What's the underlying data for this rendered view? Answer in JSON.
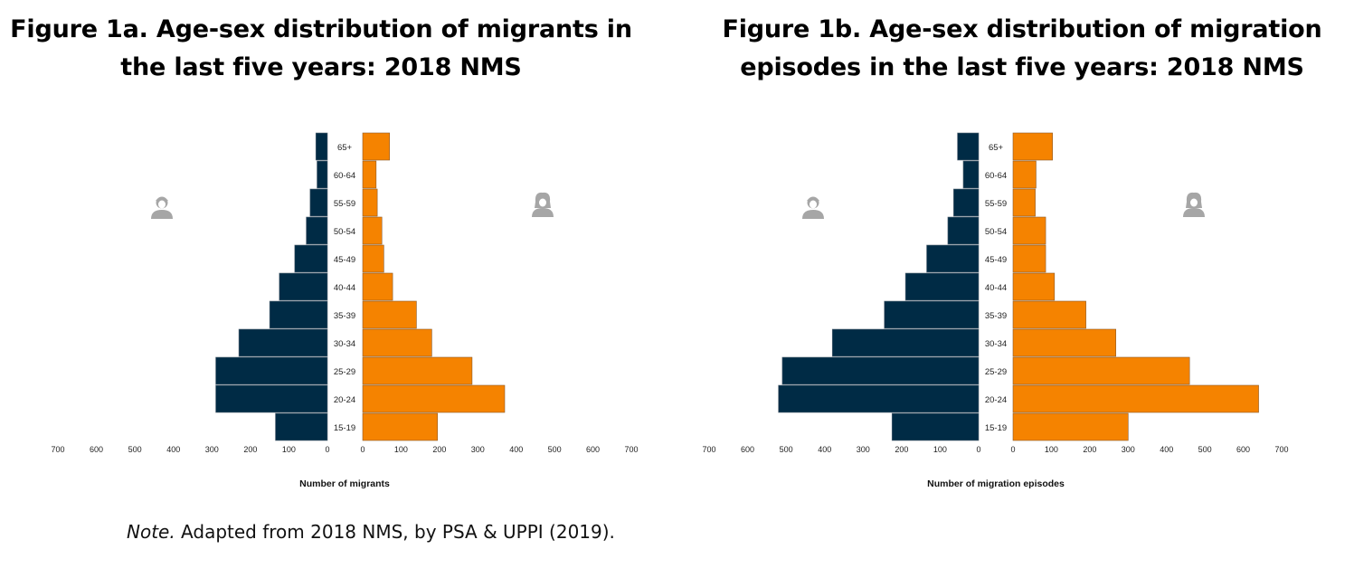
{
  "titles": {
    "left_line1": "Figure 1a. Age-sex distribution of migrants in",
    "left_line2": "the last five years: 2018 NMS",
    "right_line1": "Figure 1b. Age-sex distribution of migration",
    "right_line2": "episodes in the last five years: 2018 NMS"
  },
  "note": {
    "label": "Note.",
    "text": " Adapted from 2018 NMS, by PSA & UPPI (2019)."
  },
  "colors": {
    "male": "#002b45",
    "female": "#f58300",
    "icon": "#a6a6a6"
  },
  "icons": {
    "left": "male-person-icon",
    "right": "female-person-icon"
  },
  "chart_data": [
    {
      "type": "bar",
      "title": "Figure 1a. Age-sex distribution of migrants in the last five years: 2018 NMS",
      "xlabel": "Number of migrants",
      "categories": [
        "15-19",
        "20-24",
        "25-29",
        "30-34",
        "35-39",
        "40-44",
        "45-49",
        "50-54",
        "55-59",
        "60-64",
        "65+"
      ],
      "series": [
        {
          "values": [
            135,
            290,
            290,
            230,
            150,
            125,
            85,
            55,
            45,
            27,
            30
          ]
        },
        {
          "values": [
            195,
            370,
            285,
            180,
            140,
            78,
            55,
            50,
            38,
            35,
            70
          ]
        }
      ],
      "left_ticks": [
        "700",
        "600",
        "500",
        "400",
        "300",
        "200",
        "100",
        "0"
      ],
      "right_ticks": [
        "0",
        "100",
        "200",
        "300",
        "400",
        "500",
        "600",
        "700"
      ],
      "xlim": [
        0,
        700
      ]
    },
    {
      "type": "bar",
      "title": "Figure 1b. Age-sex distribution of migration episodes in the last five years: 2018 NMS",
      "xlabel": "Number of migration episodes",
      "categories": [
        "15-19",
        "20-24",
        "25-29",
        "30-34",
        "35-39",
        "40-44",
        "45-49",
        "50-54",
        "55-59",
        "60-64",
        "65+"
      ],
      "series": [
        {
          "values": [
            225,
            520,
            510,
            380,
            245,
            190,
            135,
            80,
            65,
            40,
            55
          ]
        },
        {
          "values": [
            300,
            640,
            460,
            268,
            190,
            108,
            85,
            85,
            58,
            60,
            103
          ]
        }
      ],
      "left_ticks": [
        "700",
        "600",
        "500",
        "400",
        "300",
        "200",
        "100",
        "0"
      ],
      "right_ticks": [
        "0",
        "100",
        "200",
        "300",
        "400",
        "500",
        "600",
        "700"
      ],
      "xlim": [
        0,
        700
      ]
    }
  ]
}
